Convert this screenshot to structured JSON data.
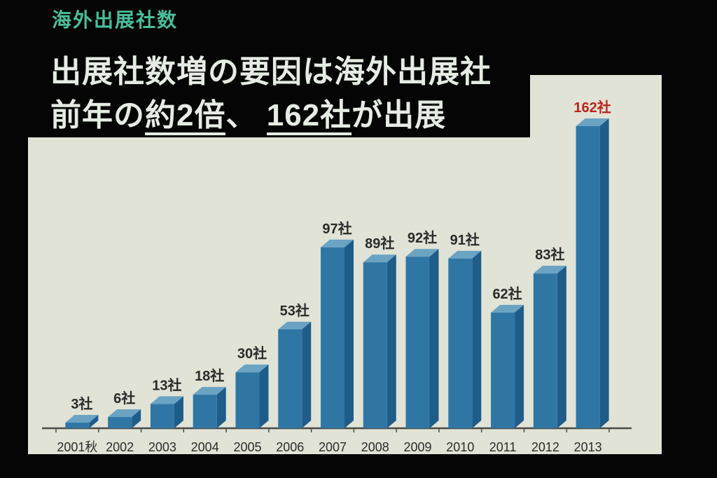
{
  "header": {
    "tag": "海外出展社数",
    "line1": "出展社数増の要因は海外出展社",
    "line2_segments": [
      {
        "text": "前年の"
      },
      {
        "text": "約2倍",
        "underline": true
      },
      {
        "text": "、 "
      },
      {
        "text": "162社",
        "underline": true
      },
      {
        "text": "が出展"
      }
    ],
    "tag_color": "#4abd9b",
    "title_color": "#e5ece3"
  },
  "chart_data": {
    "type": "bar",
    "title": "海外出展社数",
    "categories": [
      "2001秋",
      "2002",
      "2003",
      "2004",
      "2005",
      "2006",
      "2007",
      "2008",
      "2009",
      "2010",
      "2011",
      "2012",
      "2013"
    ],
    "values": [
      3,
      6,
      13,
      18,
      30,
      53,
      97,
      89,
      92,
      91,
      62,
      83,
      162
    ],
    "unit": "社",
    "highlight_index": 12,
    "xlabel": "",
    "ylabel": "",
    "ylim": [
      0,
      170
    ],
    "grid": false,
    "legend": false,
    "plot_bg": "#e0e3d6",
    "bar_front_color": "#2f76a5",
    "bar_top_color": "#6ba3c3",
    "bar_side_color": "#1e5c8a",
    "axis_color": "#4b4b46",
    "label_color": "#2b2b2b",
    "highlight_color": "#bd211d"
  }
}
